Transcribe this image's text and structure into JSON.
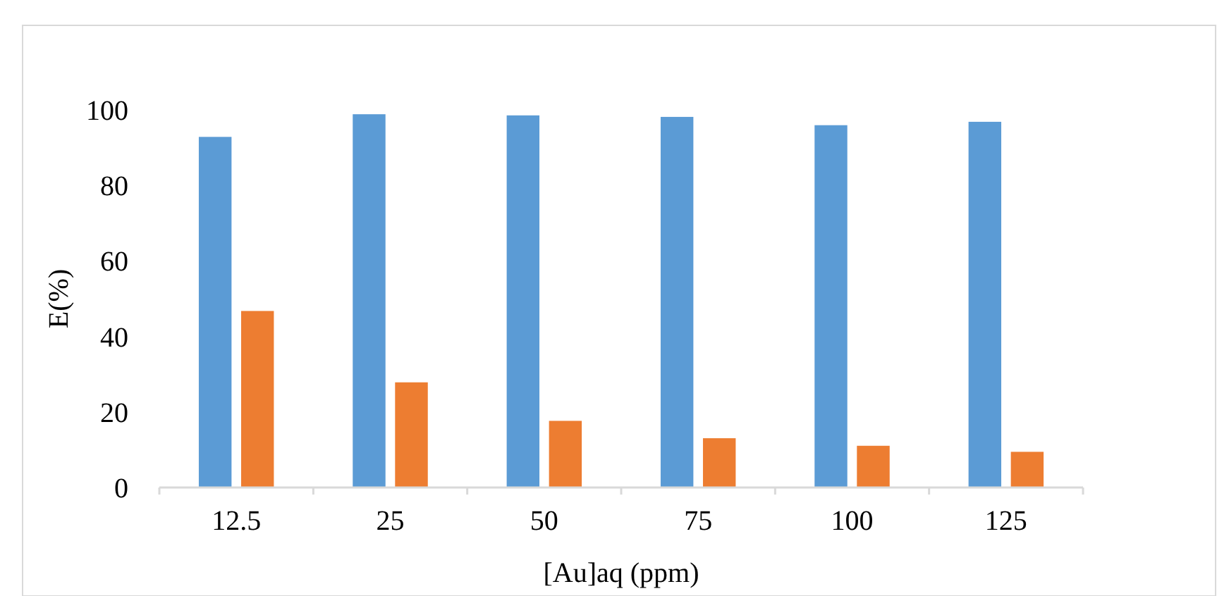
{
  "chart_data": {
    "type": "bar",
    "xlabel": "[Au]aq (ppm)",
    "ylabel": "E(%)",
    "categories": [
      "12.5",
      "25",
      "50",
      "75",
      "100",
      "125"
    ],
    "series": [
      {
        "color": "#5b9bd5",
        "values": [
          93,
          99,
          98.7,
          98.3,
          96.1,
          97
        ]
      },
      {
        "color": "#ed7d31",
        "values": [
          46.9,
          28,
          17.8,
          13.2,
          11.2,
          9.6
        ]
      }
    ],
    "ylim": [
      0,
      100
    ],
    "yticks": [
      0,
      20,
      40,
      60,
      80,
      100
    ],
    "grid": false
  }
}
